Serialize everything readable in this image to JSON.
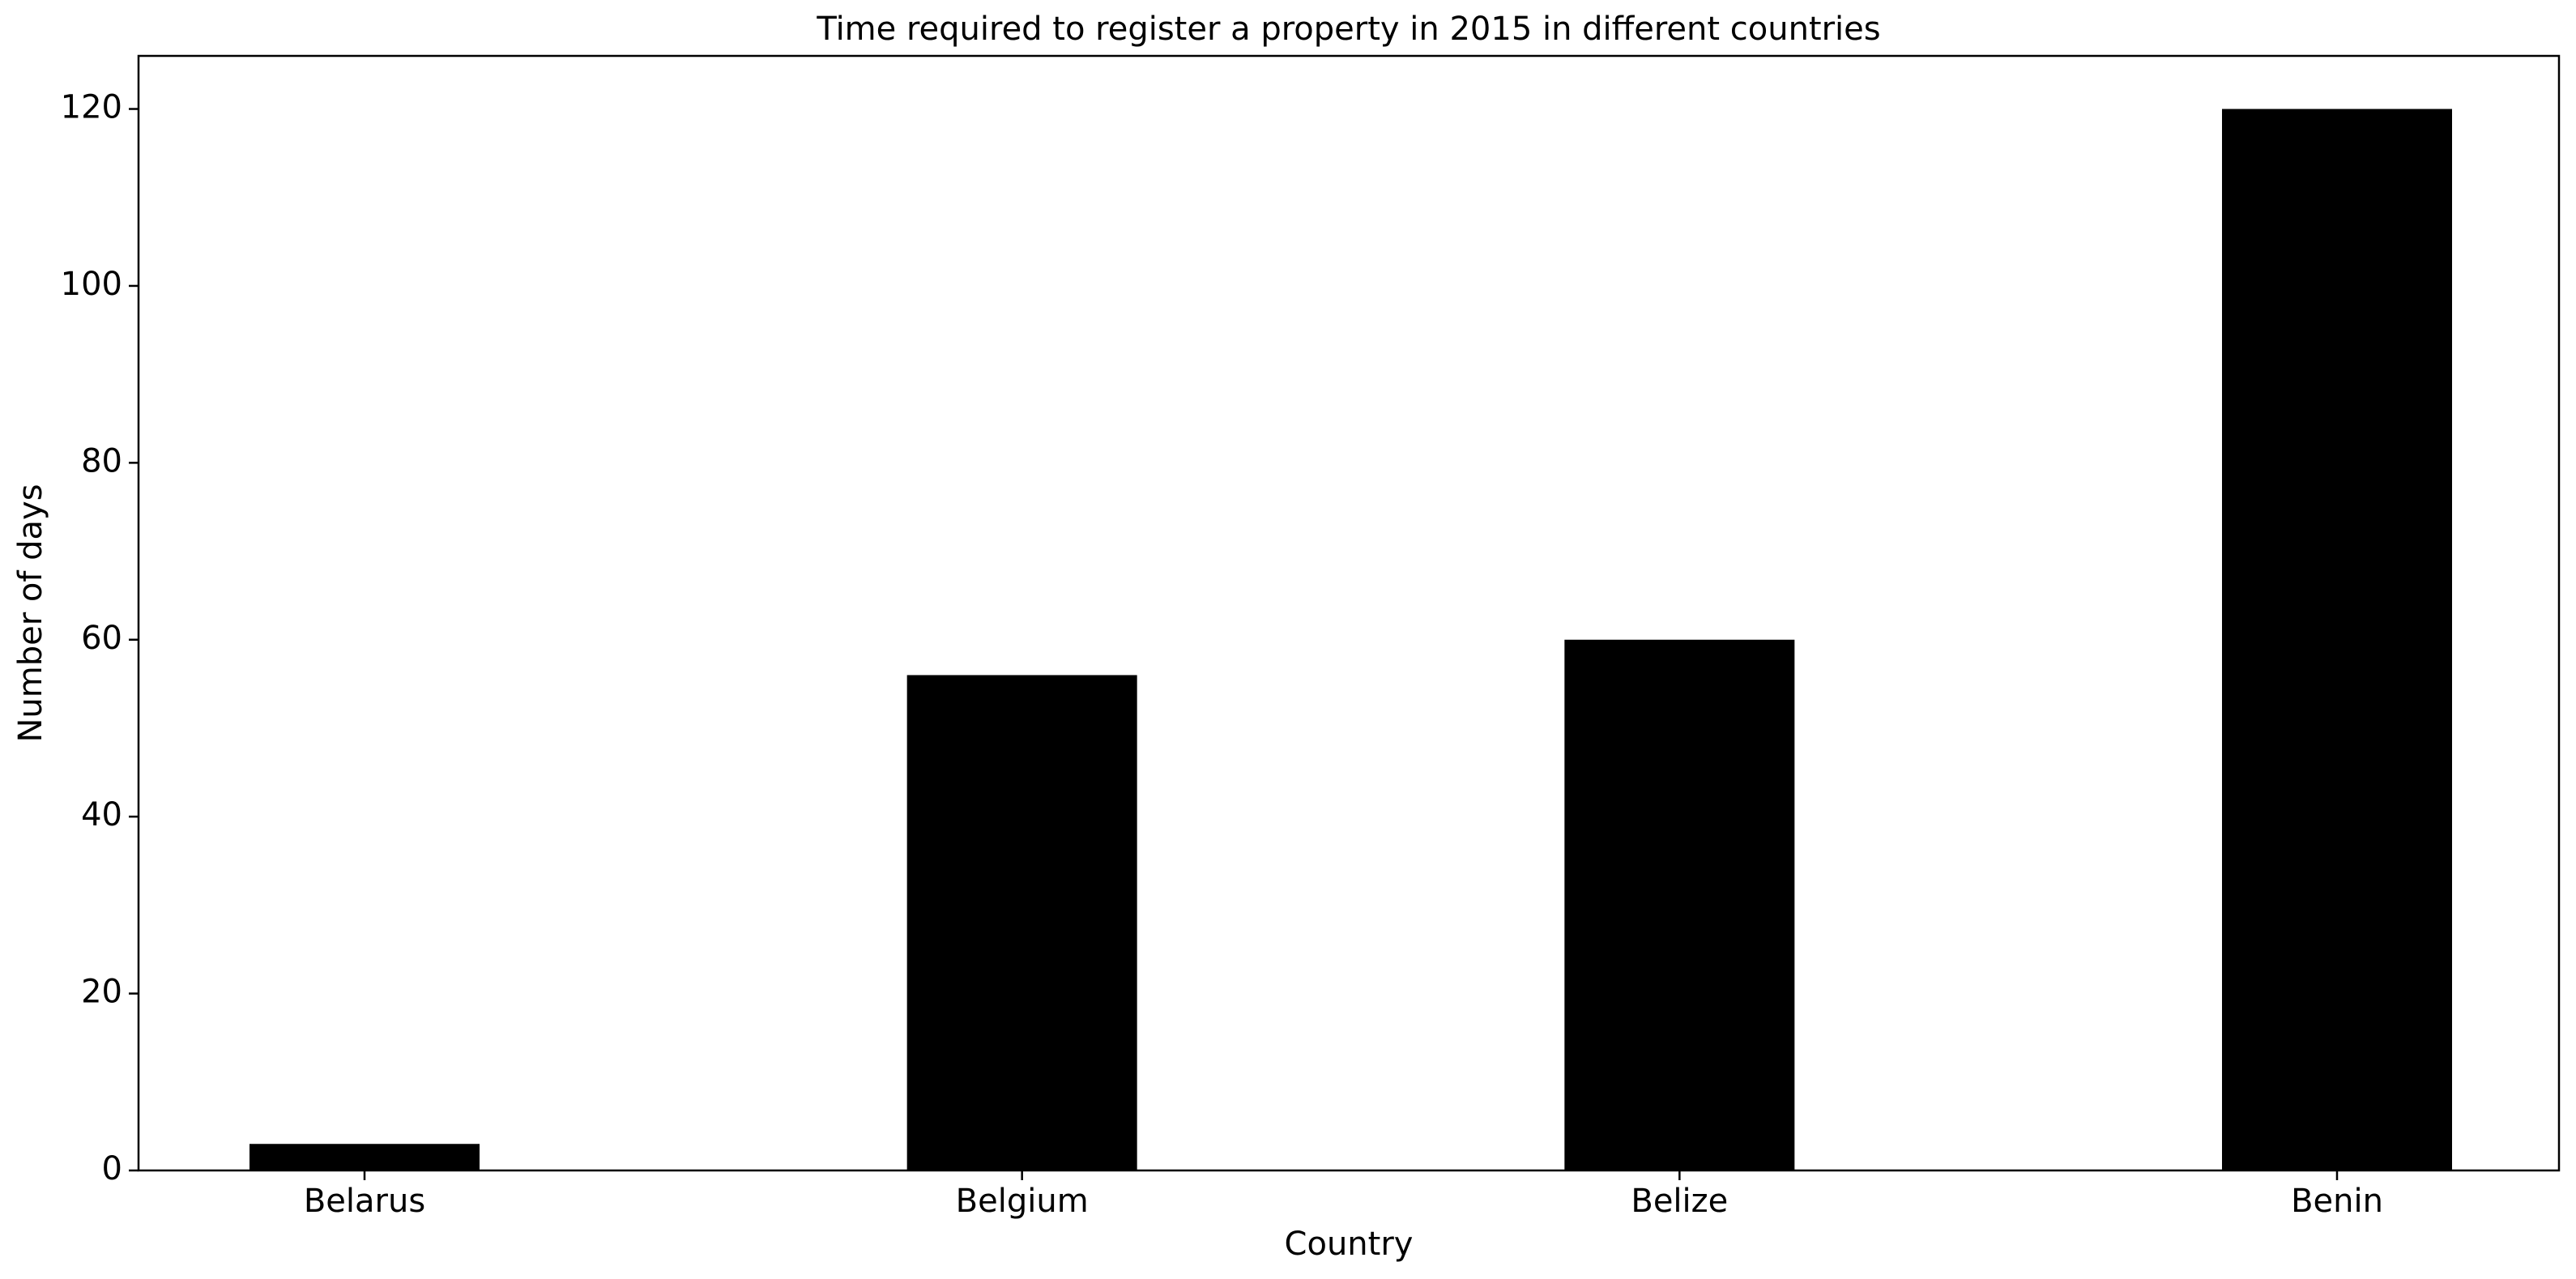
{
  "chart_data": {
    "type": "bar",
    "title": "Time required to register a property in 2015 in different countries",
    "xlabel": "Country",
    "ylabel": "Number of days",
    "categories": [
      "Belarus",
      "Belgium",
      "Belize",
      "Benin"
    ],
    "values": [
      3,
      56,
      60,
      120
    ],
    "ylim": [
      0,
      126
    ],
    "yticks": [
      0,
      20,
      40,
      60,
      80,
      100,
      120
    ],
    "bar_color": "#000000",
    "grid": false,
    "legend": "none"
  }
}
